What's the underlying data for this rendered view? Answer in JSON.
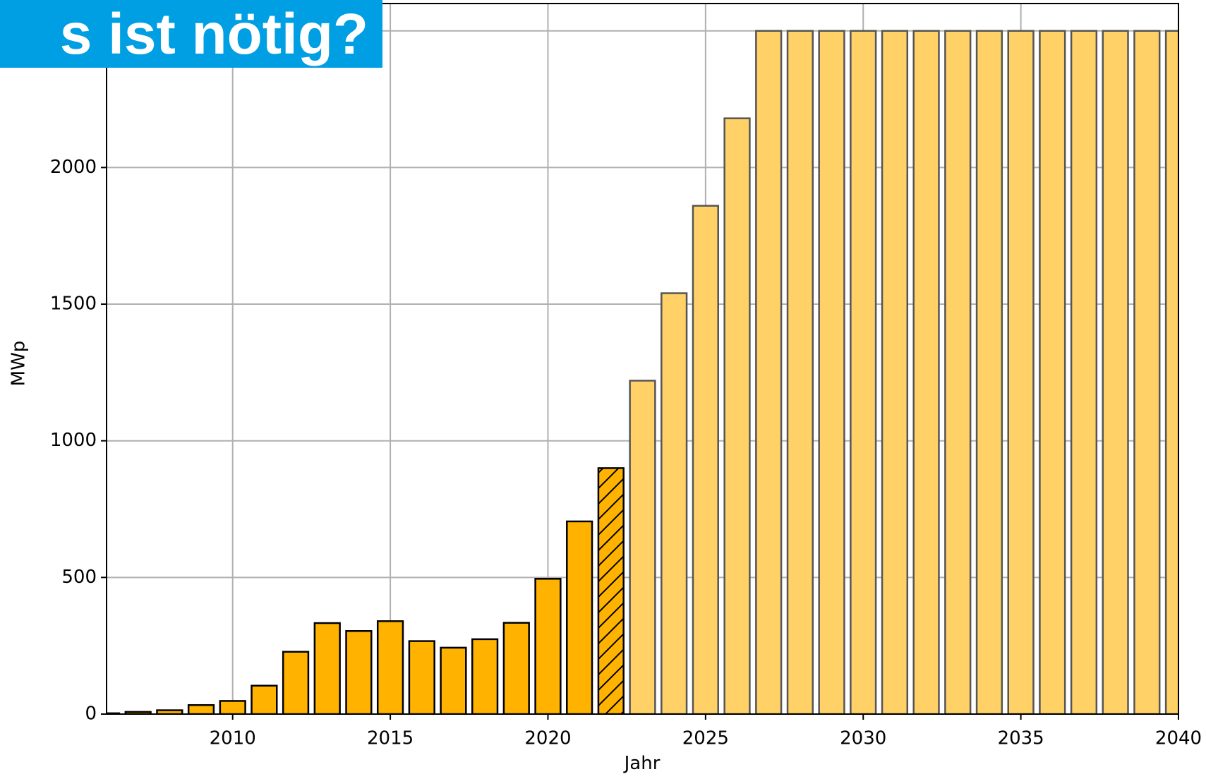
{
  "banner": {
    "text": "s ist nötig?"
  },
  "chart_data": {
    "type": "bar",
    "xlabel": "Jahr",
    "ylabel": "MWp",
    "xlim": [
      2006,
      2040
    ],
    "xticks": [
      2010,
      2015,
      2020,
      2025,
      2030,
      2035,
      2040
    ],
    "ylim": [
      0,
      2600
    ],
    "yticks": [
      0,
      500,
      1000,
      1500,
      2000,
      2500
    ],
    "grid": true,
    "series": [
      {
        "color": "#ffb300",
        "edgecolor": "#000000",
        "hatch": false,
        "x": [
          2006,
          2007,
          2008,
          2009,
          2010,
          2011,
          2012,
          2013,
          2014,
          2015,
          2016,
          2017,
          2018,
          2019,
          2020,
          2021
        ],
        "values": [
          3,
          8,
          14,
          33,
          48,
          104,
          228,
          333,
          304,
          340,
          267,
          243,
          274,
          334,
          495,
          705
        ]
      },
      {
        "color": "#ffb300",
        "edgecolor": "#000000",
        "hatch": true,
        "x": [
          2022
        ],
        "values": [
          900
        ]
      },
      {
        "color": "#ffd166",
        "edgecolor": "#555555",
        "hatch": false,
        "x": [
          2023,
          2024,
          2025,
          2026,
          2027,
          2028,
          2029,
          2030,
          2031,
          2032,
          2033,
          2034,
          2035,
          2036,
          2037,
          2038,
          2039,
          2040
        ],
        "values": [
          1220,
          1540,
          1860,
          2180,
          2500,
          2500,
          2500,
          2500,
          2500,
          2500,
          2500,
          2500,
          2500,
          2500,
          2500,
          2500,
          2500,
          2500
        ]
      }
    ]
  }
}
